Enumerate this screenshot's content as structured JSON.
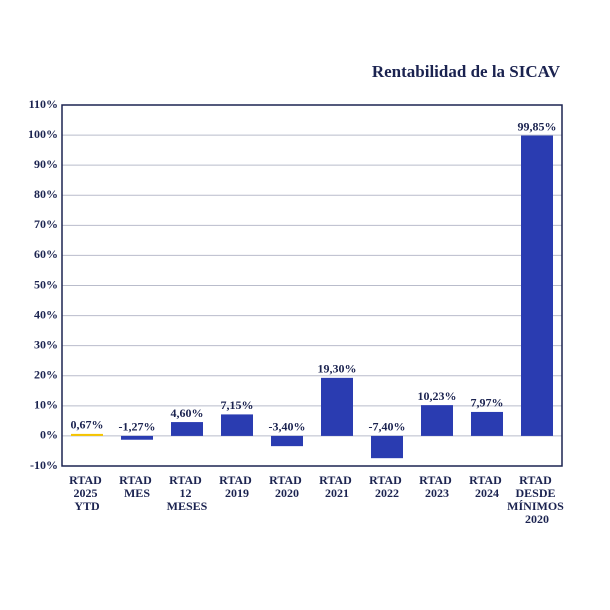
{
  "chart_data": {
    "type": "bar",
    "title": "Rentabilidad de la SICAV",
    "categories": [
      "RTAD 2025 YTD",
      "RTAD MES",
      "RTAD 12 MESES",
      "RTAD 2019",
      "RTAD 2020",
      "RTAD 2021",
      "RTAD 2022",
      "RTAD 2023",
      "RTAD 2024",
      "RTAD DESDE MÍNIMOS 2020"
    ],
    "values": [
      0.67,
      -1.27,
      4.6,
      7.15,
      -3.4,
      19.3,
      -7.4,
      10.23,
      7.97,
      99.85
    ],
    "value_labels": [
      "0,67%",
      "-1,27%",
      "4,60%",
      "7,15%",
      "-3,40%",
      "19,30%",
      "-7,40%",
      "10,23%",
      "7,97%",
      "99,85%"
    ],
    "colors": [
      "#f6c500",
      "#2a3cb1",
      "#2a3cb1",
      "#2a3cb1",
      "#2a3cb1",
      "#2a3cb1",
      "#2a3cb1",
      "#2a3cb1",
      "#2a3cb1",
      "#2a3cb1"
    ],
    "ylim": [
      -10,
      110
    ],
    "yticks": [
      {
        "value": -10,
        "label": "-10%"
      },
      {
        "value": 0,
        "label": "0%"
      },
      {
        "value": 10,
        "label": "10%"
      },
      {
        "value": 20,
        "label": "20%"
      },
      {
        "value": 30,
        "label": "30%"
      },
      {
        "value": 40,
        "label": "40%"
      },
      {
        "value": 50,
        "label": "50%"
      },
      {
        "value": 60,
        "label": "60%"
      },
      {
        "value": 70,
        "label": "70%"
      },
      {
        "value": 80,
        "label": "80%"
      },
      {
        "value": 90,
        "label": "90%"
      },
      {
        "value": 100,
        "label": "100%"
      },
      {
        "value": 110,
        "label": "110%"
      }
    ],
    "grid": true
  }
}
